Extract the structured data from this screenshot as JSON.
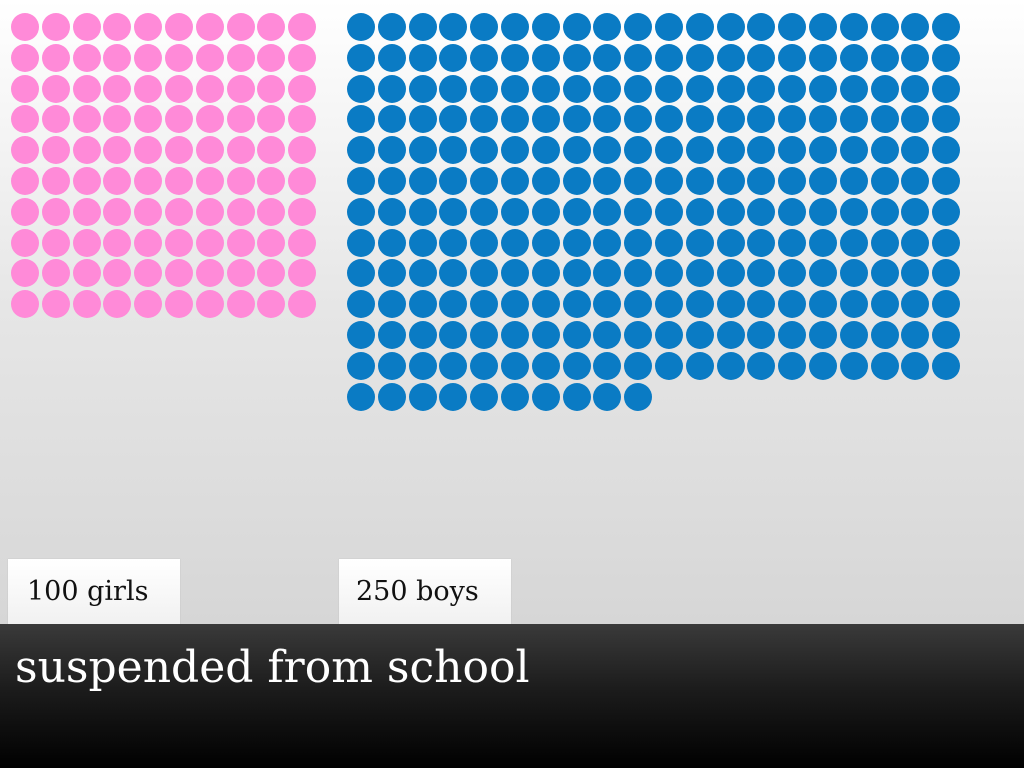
{
  "caption": "suspended from school",
  "labels": {
    "girls": "100 girls",
    "boys": "250 boys"
  },
  "colors": {
    "girls": "#ff8ad8",
    "boys": "#0a7bc4"
  },
  "chart_data": {
    "type": "pictograph",
    "title": "suspended from school",
    "series": [
      {
        "name": "100 girls",
        "category": "girls",
        "value": 100,
        "color": "#ff8ad8"
      },
      {
        "name": "250 boys",
        "category": "boys",
        "value": 250,
        "color": "#0a7bc4"
      }
    ],
    "unit": "one dot per student"
  }
}
